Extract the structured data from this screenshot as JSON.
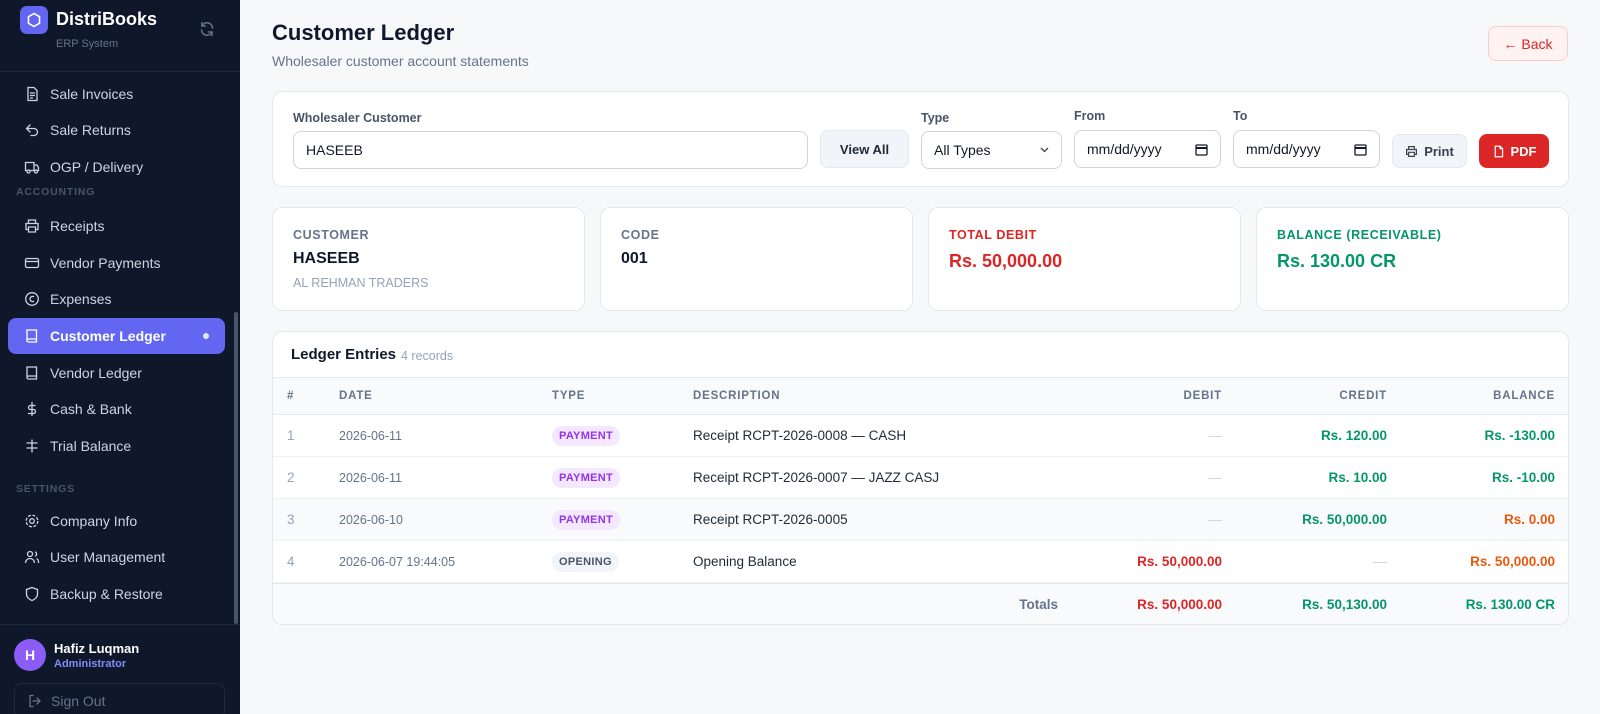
{
  "brand": {
    "name": "DistriBooks",
    "subtitle": "ERP System"
  },
  "nav": {
    "items_top": [
      {
        "label": "Sale Invoices",
        "icon": "file-text-icon"
      },
      {
        "label": "Sale Returns",
        "icon": "return-arrow-icon"
      },
      {
        "label": "OGP / Delivery",
        "icon": "truck-icon"
      }
    ],
    "section_accounting": "ACCOUNTING",
    "items_accounting": [
      {
        "label": "Receipts",
        "icon": "printer-icon"
      },
      {
        "label": "Vendor Payments",
        "icon": "credit-card-icon"
      },
      {
        "label": "Expenses",
        "icon": "coin-icon"
      },
      {
        "label": "Customer Ledger",
        "icon": "book-icon",
        "active": true
      },
      {
        "label": "Vendor Ledger",
        "icon": "book-icon"
      },
      {
        "label": "Cash & Bank",
        "icon": "dollar-icon"
      },
      {
        "label": "Trial Balance",
        "icon": "scale-icon"
      }
    ],
    "section_settings": "SETTINGS",
    "items_settings": [
      {
        "label": "Company Info",
        "icon": "gear-icon"
      },
      {
        "label": "User Management",
        "icon": "users-icon"
      },
      {
        "label": "Backup & Restore",
        "icon": "shield-icon"
      }
    ]
  },
  "user": {
    "initial": "H",
    "name": "Hafiz Luqman",
    "role": "Administrator",
    "signout": "Sign Out"
  },
  "page": {
    "title": "Customer Ledger",
    "subtitle": "Wholesaler customer account statements",
    "back": "← Back"
  },
  "filters": {
    "customer_label": "Wholesaler Customer",
    "customer_value": "HASEEB",
    "view_all": "View All",
    "type_label": "Type",
    "type_value": "All Types",
    "from_label": "From",
    "from_value": "mm/dd/yyyy",
    "to_label": "To",
    "to_value": "mm/dd/yyyy",
    "print": "Print",
    "pdf": "PDF"
  },
  "stats": {
    "customer_label": "CUSTOMER",
    "customer_name": "HASEEB",
    "customer_company": "AL REHMAN TRADERS",
    "code_label": "CODE",
    "code_value": "001",
    "debit_label": "TOTAL DEBIT",
    "debit_value": "Rs. 50,000.00",
    "balance_label": "BALANCE (RECEIVABLE)",
    "balance_value": "Rs. 130.00 CR"
  },
  "ledger": {
    "title": "Ledger Entries",
    "count": "4 records",
    "columns": [
      "#",
      "DATE",
      "TYPE",
      "DESCRIPTION",
      "DEBIT",
      "CREDIT",
      "BALANCE"
    ],
    "rows": [
      {
        "n": "1",
        "date": "2026-06-11",
        "type": "PAYMENT",
        "desc": "Receipt RCPT-2026-0008 — CASH",
        "debit": "—",
        "credit": "Rs. 120.00",
        "balance": "Rs. -130.00"
      },
      {
        "n": "2",
        "date": "2026-06-11",
        "type": "PAYMENT",
        "desc": "Receipt RCPT-2026-0007 — JAZZ CASJ",
        "debit": "—",
        "credit": "Rs. 10.00",
        "balance": "Rs. -10.00"
      },
      {
        "n": "3",
        "date": "2026-06-10",
        "type": "PAYMENT",
        "desc": "Receipt RCPT-2026-0005",
        "debit": "—",
        "credit": "Rs. 50,000.00",
        "balance": "Rs. 0.00"
      },
      {
        "n": "4",
        "date": "2026-06-07 19:44:05",
        "type": "OPENING",
        "desc": "Opening Balance",
        "debit": "Rs. 50,000.00",
        "credit": "—",
        "balance": "Rs. 50,000.00"
      }
    ],
    "totals": {
      "label": "Totals",
      "debit": "Rs. 50,000.00",
      "credit": "Rs. 50,130.00",
      "balance": "Rs. 130.00 CR"
    }
  },
  "colors": {
    "accent": "#6366f1",
    "sidebar_bg": "#0f172a",
    "debit": "#dc2626",
    "credit": "#059669",
    "warn": "#ea580c"
  }
}
